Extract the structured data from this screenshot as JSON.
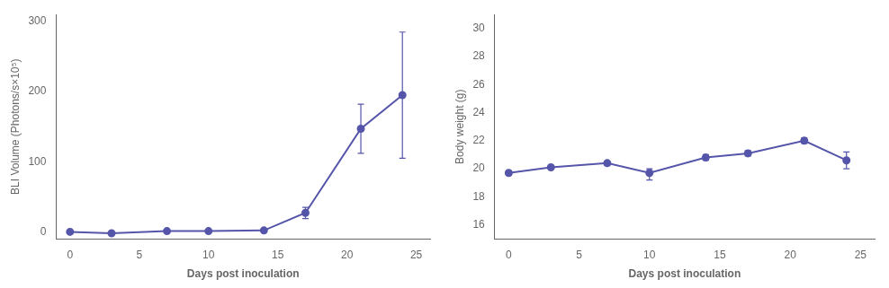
{
  "chart_data": [
    {
      "type": "line",
      "x": [
        0,
        3,
        7,
        10,
        14,
        17,
        21,
        24
      ],
      "values": [
        0,
        -2,
        1,
        1,
        2,
        27,
        147,
        195
      ],
      "yerr_low": [
        0,
        0,
        0,
        0,
        1,
        8,
        35,
        90
      ],
      "yerr_high": [
        0,
        0,
        0,
        0,
        1,
        8,
        35,
        90
      ],
      "xlabel": "Days post inoculation",
      "ylabel": "BLI Volume (Photons/s×10⁵)",
      "xlim": [
        -1,
        26
      ],
      "xticks": [
        0,
        5,
        10,
        15,
        20,
        25
      ],
      "ylim": [
        -10,
        310
      ],
      "yticks": [
        0,
        100,
        200,
        300
      ],
      "color": "#5555aa",
      "marker": "circle",
      "grid": false
    },
    {
      "type": "line",
      "x": [
        0,
        3,
        7,
        10,
        14,
        17,
        21,
        24
      ],
      "values": [
        19.7,
        20.1,
        20.4,
        19.7,
        20.8,
        21.1,
        22.0,
        20.6
      ],
      "yerr_low": [
        0.15,
        0.1,
        0.15,
        0.5,
        0.2,
        0.2,
        0.2,
        0.6
      ],
      "yerr_high": [
        0.15,
        0.1,
        0.15,
        0.3,
        0.2,
        0.2,
        0.2,
        0.6
      ],
      "xlabel": "Days post inoculation",
      "ylabel": "Body weight (g)",
      "xlim": [
        -1,
        26
      ],
      "xticks": [
        0,
        5,
        10,
        15,
        20,
        25
      ],
      "ylim": [
        15,
        31
      ],
      "yticks": [
        16,
        18,
        20,
        22,
        24,
        26,
        28,
        30
      ],
      "color": "#5555aa",
      "marker": "circle",
      "grid": false
    }
  ]
}
